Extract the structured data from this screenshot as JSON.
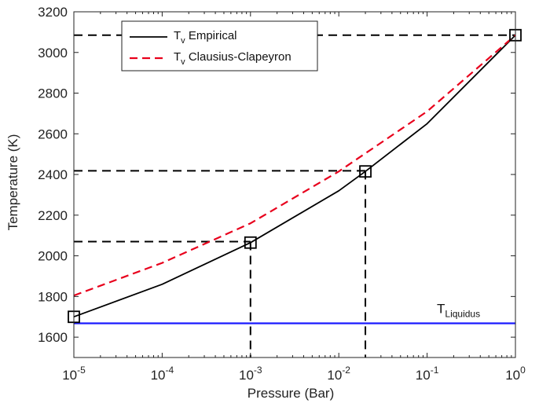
{
  "chart_data": {
    "type": "line",
    "title": "",
    "xlabel": "Pressure (Bar)",
    "ylabel": "Temperature (K)",
    "x_scale": "log",
    "xlim": [
      1e-05,
      1
    ],
    "ylim": [
      1500,
      3200
    ],
    "x_ticks": [
      {
        "value": 1e-05,
        "base": "10",
        "exp": "-5"
      },
      {
        "value": 0.0001,
        "base": "10",
        "exp": "-4"
      },
      {
        "value": 0.001,
        "base": "10",
        "exp": "-3"
      },
      {
        "value": 0.01,
        "base": "10",
        "exp": "-2"
      },
      {
        "value": 0.1,
        "base": "10",
        "exp": "-1"
      },
      {
        "value": 1,
        "base": "10",
        "exp": "0"
      }
    ],
    "y_ticks": [
      1600,
      1800,
      2000,
      2200,
      2400,
      2600,
      2800,
      3000,
      3200
    ],
    "grid": false,
    "legend_position": "top-left",
    "series": [
      {
        "name": "Empirical",
        "legend_main": "T",
        "legend_sub": "v",
        "legend_rest": " Empirical",
        "color": "#000000",
        "dash": "solid",
        "x": [
          1e-05,
          0.0001,
          0.001,
          0.01,
          0.02,
          0.1,
          1
        ],
        "y": [
          1700,
          1860,
          2065,
          2320,
          2415,
          2650,
          3085
        ]
      },
      {
        "name": "Clausius-Clapeyron",
        "legend_main": "T",
        "legend_sub": "v",
        "legend_rest": " Clausius-Clapeyron",
        "color": "#e8001c",
        "dash": "dashed",
        "x": [
          1e-05,
          0.0001,
          0.001,
          0.01,
          0.1,
          1
        ],
        "y": [
          1805,
          1965,
          2160,
          2415,
          2710,
          3085
        ]
      }
    ],
    "markers": [
      {
        "x": 1e-05,
        "y": 1700
      },
      {
        "x": 0.001,
        "y": 2065
      },
      {
        "x": 0.02,
        "y": 2415
      },
      {
        "x": 1,
        "y": 3085
      }
    ],
    "reference_lines": [
      {
        "x": 0.001,
        "y": 2070
      },
      {
        "x": 0.02,
        "y": 2418
      },
      {
        "x": 1,
        "y": 3085
      }
    ],
    "liquidus": {
      "y": 1668,
      "color": "#1a1aff",
      "label_main": "T",
      "label_sub": "Liquidus"
    }
  }
}
